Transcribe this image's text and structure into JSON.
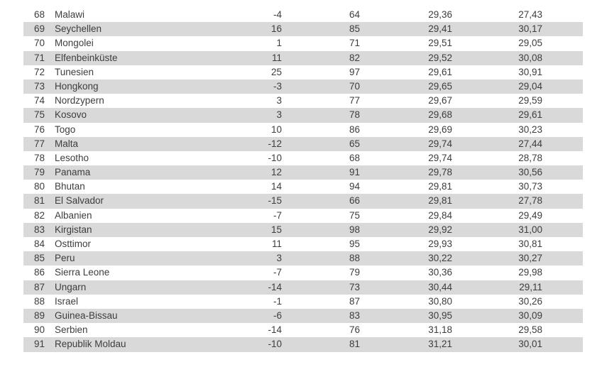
{
  "page": {
    "background_color": "#ffffff"
  },
  "table": {
    "row_alt_color": "#d9d9d9",
    "text_color": "#3d3d3d",
    "columns": [
      "rank",
      "country",
      "rank_change",
      "score_int",
      "value_1",
      "value_2"
    ],
    "rows": [
      {
        "rank": "68",
        "country": "Malawi",
        "rank_change": "-4",
        "score_int": "64",
        "value_1": "29,36",
        "value_2": "27,43"
      },
      {
        "rank": "69",
        "country": "Seychellen",
        "rank_change": "16",
        "score_int": "85",
        "value_1": "29,41",
        "value_2": "30,17"
      },
      {
        "rank": "70",
        "country": "Mongolei",
        "rank_change": "1",
        "score_int": "71",
        "value_1": "29,51",
        "value_2": "29,05"
      },
      {
        "rank": "71",
        "country": "Elfenbeinküste",
        "rank_change": "11",
        "score_int": "82",
        "value_1": "29,52",
        "value_2": "30,08"
      },
      {
        "rank": "72",
        "country": "Tunesien",
        "rank_change": "25",
        "score_int": "97",
        "value_1": "29,61",
        "value_2": "30,91"
      },
      {
        "rank": "73",
        "country": "Hongkong",
        "rank_change": "-3",
        "score_int": "70",
        "value_1": "29,65",
        "value_2": "29,04"
      },
      {
        "rank": "74",
        "country": "Nordzypern",
        "rank_change": "3",
        "score_int": "77",
        "value_1": "29,67",
        "value_2": "29,59"
      },
      {
        "rank": "75",
        "country": "Kosovo",
        "rank_change": "3",
        "score_int": "78",
        "value_1": "29,68",
        "value_2": "29,61"
      },
      {
        "rank": "76",
        "country": "Togo",
        "rank_change": "10",
        "score_int": "86",
        "value_1": "29,69",
        "value_2": "30,23"
      },
      {
        "rank": "77",
        "country": "Malta",
        "rank_change": "-12",
        "score_int": "65",
        "value_1": "29,74",
        "value_2": "27,44"
      },
      {
        "rank": "78",
        "country": "Lesotho",
        "rank_change": "-10",
        "score_int": "68",
        "value_1": "29,74",
        "value_2": "28,78"
      },
      {
        "rank": "79",
        "country": "Panama",
        "rank_change": "12",
        "score_int": "91",
        "value_1": "29,78",
        "value_2": "30,56"
      },
      {
        "rank": "80",
        "country": "Bhutan",
        "rank_change": "14",
        "score_int": "94",
        "value_1": "29,81",
        "value_2": "30,73"
      },
      {
        "rank": "81",
        "country": "El Salvador",
        "rank_change": "-15",
        "score_int": "66",
        "value_1": "29,81",
        "value_2": "27,78"
      },
      {
        "rank": "82",
        "country": "Albanien",
        "rank_change": "-7",
        "score_int": "75",
        "value_1": "29,84",
        "value_2": "29,49"
      },
      {
        "rank": "83",
        "country": "Kirgistan",
        "rank_change": "15",
        "score_int": "98",
        "value_1": "29,92",
        "value_2": "31,00"
      },
      {
        "rank": "84",
        "country": "Osttimor",
        "rank_change": "11",
        "score_int": "95",
        "value_1": "29,93",
        "value_2": "30,81"
      },
      {
        "rank": "85",
        "country": "Peru",
        "rank_change": "3",
        "score_int": "88",
        "value_1": "30,22",
        "value_2": "30,27"
      },
      {
        "rank": "86",
        "country": "Sierra Leone",
        "rank_change": "-7",
        "score_int": "79",
        "value_1": "30,36",
        "value_2": "29,98"
      },
      {
        "rank": "87",
        "country": "Ungarn",
        "rank_change": "-14",
        "score_int": "73",
        "value_1": "30,44",
        "value_2": "29,11"
      },
      {
        "rank": "88",
        "country": "Israel",
        "rank_change": "-1",
        "score_int": "87",
        "value_1": "30,80",
        "value_2": "30,26"
      },
      {
        "rank": "89",
        "country": "Guinea-Bissau",
        "rank_change": "-6",
        "score_int": "83",
        "value_1": "30,95",
        "value_2": "30,09"
      },
      {
        "rank": "90",
        "country": "Serbien",
        "rank_change": "-14",
        "score_int": "76",
        "value_1": "31,18",
        "value_2": "29,58"
      },
      {
        "rank": "91",
        "country": "Republik Moldau",
        "rank_change": "-10",
        "score_int": "81",
        "value_1": "31,21",
        "value_2": "30,01"
      }
    ]
  }
}
